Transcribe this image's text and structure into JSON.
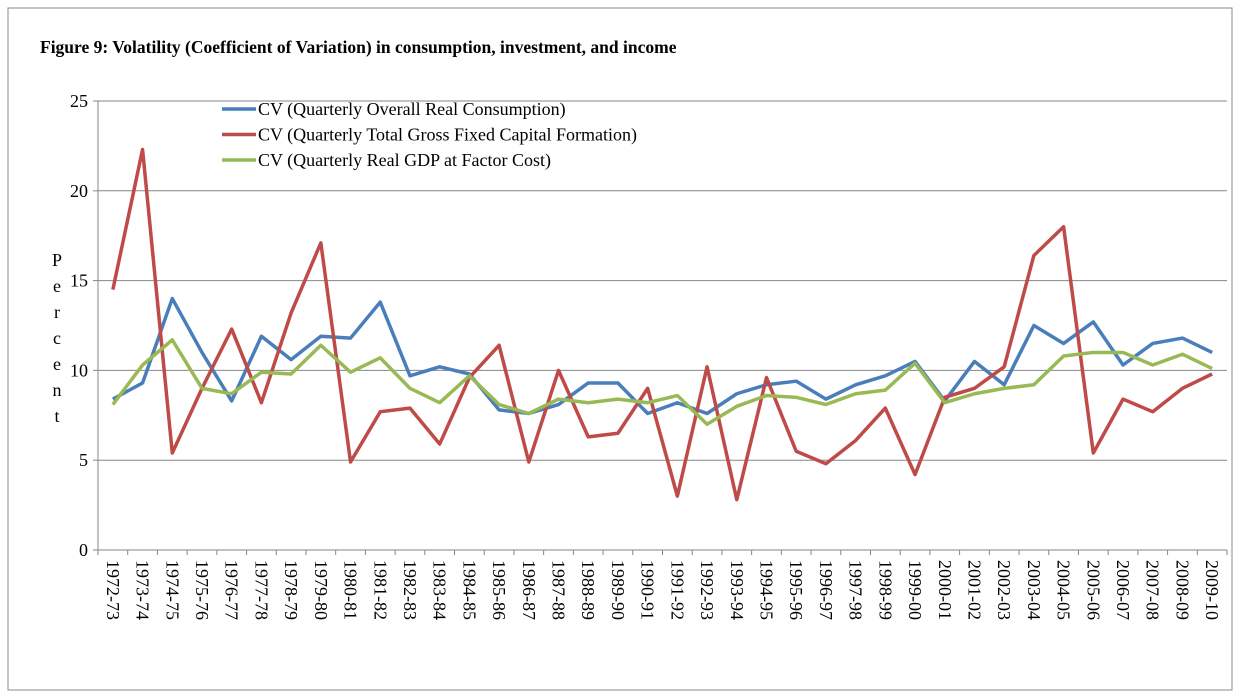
{
  "chart_data": {
    "type": "line",
    "title": "Figure 9: Volatility (Coefficient of Variation) in consumption, investment, and income",
    "ylabel": "Percent",
    "categories": [
      "1972-73",
      "1973-74",
      "1974-75",
      "1975-76",
      "1976-77",
      "1977-78",
      "1978-79",
      "1979-80",
      "1980-81",
      "1981-82",
      "1982-83",
      "1983-84",
      "1984-85",
      "1985-86",
      "1986-87",
      "1987-88",
      "1988-89",
      "1989-90",
      "1990-91",
      "1991-92",
      "1992-93",
      "1993-94",
      "1994-95",
      "1995-96",
      "1996-97",
      "1997-98",
      "1998-99",
      "1999-00",
      "2000-01",
      "2001-02",
      "2002-03",
      "2003-04",
      "2004-05",
      "2005-06",
      "2006-07",
      "2007-08",
      "2008-09",
      "2009-10"
    ],
    "series": [
      {
        "name": "CV (Quarterly Overall Real Consumption)",
        "color": "#4a7ebb",
        "values": [
          8.4,
          9.3,
          14.0,
          11.0,
          8.3,
          11.9,
          10.6,
          11.9,
          11.8,
          13.8,
          9.7,
          10.2,
          9.8,
          7.8,
          7.6,
          8.1,
          9.3,
          9.3,
          7.6,
          8.2,
          7.6,
          8.7,
          9.2,
          9.4,
          8.4,
          9.2,
          9.7,
          10.5,
          8.3,
          10.5,
          9.2,
          12.5,
          11.5,
          12.7,
          10.3,
          11.5,
          11.8,
          11.0
        ]
      },
      {
        "name": "CV (Quarterly Total Gross Fixed Capital Formation)",
        "color": "#be4b48",
        "values": [
          14.5,
          22.3,
          5.4,
          9.0,
          12.3,
          8.2,
          13.2,
          17.1,
          4.9,
          7.7,
          7.9,
          5.9,
          9.6,
          11.4,
          4.9,
          10.0,
          6.3,
          6.5,
          9.0,
          3.0,
          10.2,
          2.8,
          9.6,
          5.5,
          4.8,
          6.1,
          7.9,
          4.2,
          8.5,
          9.0,
          10.2,
          16.4,
          18.0,
          5.4,
          8.4,
          7.7,
          9.0,
          9.8
        ]
      },
      {
        "name": "CV (Quarterly Real GDP at Factor Cost)",
        "color": "#98b954",
        "values": [
          8.1,
          10.3,
          11.7,
          9.0,
          8.7,
          9.9,
          9.8,
          11.4,
          9.9,
          10.7,
          9.0,
          8.2,
          9.7,
          8.1,
          7.6,
          8.4,
          8.2,
          8.4,
          8.2,
          8.6,
          7.0,
          8.0,
          8.6,
          8.5,
          8.1,
          8.7,
          8.9,
          10.4,
          8.2,
          8.7,
          9.0,
          9.2,
          10.8,
          11.0,
          11.0,
          10.3,
          10.9,
          10.1
        ]
      }
    ],
    "ylim": [
      0,
      25
    ],
    "yticks": [
      0,
      5,
      10,
      15,
      20,
      25
    ],
    "grid": true
  }
}
